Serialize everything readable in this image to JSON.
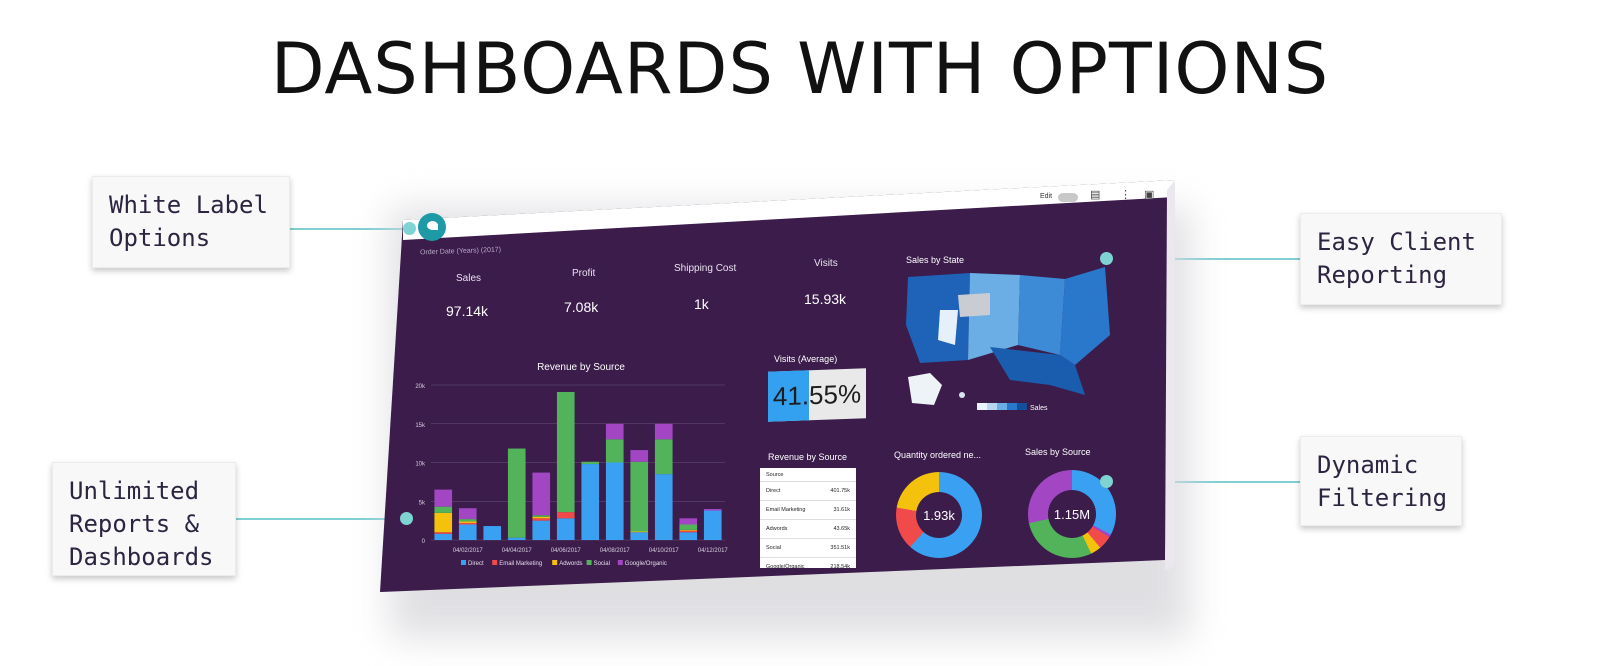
{
  "page_title": "DASHBOARDS WITH OPTIONS",
  "callouts": {
    "white_label": "White Label\nOptions",
    "easy_client": "Easy Client\nReporting",
    "unlimited": "Unlimited\nReports &\nDashboards",
    "dynamic": "Dynamic\nFiltering"
  },
  "toolbar": {
    "edit_label": "Edit"
  },
  "dashboard": {
    "filter_label": "Order Date (Years) (2017)",
    "kpis": [
      {
        "label": "Sales",
        "value": "97.14k"
      },
      {
        "label": "Profit",
        "value": "7.08k"
      },
      {
        "label": "Shipping Cost",
        "value": "1k"
      },
      {
        "label": "Visits",
        "value": "15.93k"
      }
    ],
    "visits_avg": {
      "title": "Visits (Average)",
      "value": "41.55%",
      "fraction": 0.4155
    },
    "map": {
      "title": "Sales by State",
      "legend_label": "Sales"
    },
    "revenue_table": {
      "title": "Revenue by Source",
      "header": "Source",
      "rows": [
        {
          "source": "Direct",
          "value": "401.75k"
        },
        {
          "source": "Email Marketing",
          "value": "31.61k"
        },
        {
          "source": "Adwords",
          "value": "43.65k"
        },
        {
          "source": "Social",
          "value": "351.51k"
        },
        {
          "source": "Google/Organic",
          "value": "218.54k"
        }
      ]
    },
    "donut_quantity": {
      "title": "Quantity ordered ne...",
      "center": "1.93k"
    },
    "donut_sales": {
      "title": "Sales by Source",
      "center": "1.15M"
    }
  },
  "colors": {
    "direct": "#3aa0f2",
    "email_marketing": "#f04a4a",
    "adwords": "#f4c20d",
    "social": "#52b35a",
    "google_organic": "#a346c4",
    "dashboard_bg": "#3b1c4b",
    "accent": "#7fd3d3"
  },
  "chart_data": {
    "type": "bar",
    "title": "Revenue by Source",
    "xlabel": "",
    "ylabel": "",
    "ylim": [
      0,
      20000
    ],
    "y_ticks": [
      "0",
      "5k",
      "10k",
      "15k",
      "20k"
    ],
    "x_tick_labels": [
      "04/02/2017",
      "04/04/2017",
      "04/06/2017",
      "04/08/2017",
      "04/10/2017",
      "04/12/2017"
    ],
    "categories": [
      "04/01/2017",
      "04/02/2017",
      "04/03/2017",
      "04/04/2017",
      "04/05/2017",
      "04/06/2017",
      "04/07/2017",
      "04/08/2017",
      "04/09/2017",
      "04/10/2017",
      "04/11/2017",
      "04/12/2017"
    ],
    "stacked": true,
    "series": [
      {
        "name": "Direct",
        "values": [
          800,
          2000,
          1800,
          300,
          2500,
          2800,
          9800,
          10000,
          1000,
          8500,
          1000,
          3800
        ]
      },
      {
        "name": "Email Marketing",
        "values": [
          200,
          200,
          0,
          0,
          300,
          800,
          0,
          0,
          0,
          0,
          200,
          0
        ]
      },
      {
        "name": "Adwords",
        "values": [
          2500,
          200,
          0,
          0,
          200,
          0,
          0,
          0,
          100,
          0,
          100,
          0
        ]
      },
      {
        "name": "Social",
        "values": [
          800,
          300,
          0,
          11500,
          200,
          15500,
          300,
          3000,
          9000,
          4500,
          700,
          0
        ]
      },
      {
        "name": "Google/Organic",
        "values": [
          2200,
          1400,
          0,
          0,
          5500,
          0,
          0,
          2000,
          1500,
          2000,
          800,
          200
        ]
      }
    ]
  }
}
